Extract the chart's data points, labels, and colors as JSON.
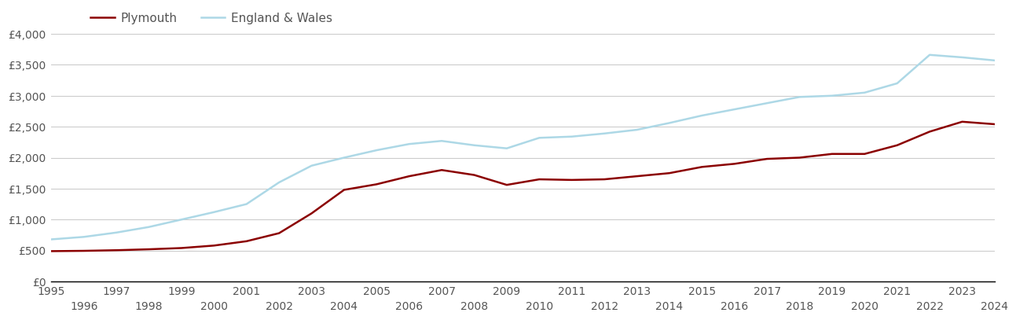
{
  "plymouth_years": [
    1995,
    1996,
    1997,
    1998,
    1999,
    2000,
    2001,
    2002,
    2003,
    2004,
    2005,
    2006,
    2007,
    2008,
    2009,
    2010,
    2011,
    2012,
    2013,
    2014,
    2015,
    2016,
    2017,
    2018,
    2019,
    2020,
    2021,
    2022,
    2023,
    2024
  ],
  "plymouth_values": [
    490,
    495,
    505,
    520,
    540,
    580,
    650,
    780,
    1100,
    1480,
    1570,
    1700,
    1800,
    1720,
    1560,
    1650,
    1640,
    1650,
    1700,
    1750,
    1850,
    1900,
    1980,
    2000,
    2060,
    2060,
    2200,
    2420,
    2580,
    2540
  ],
  "ew_years": [
    1995,
    1996,
    1997,
    1998,
    1999,
    2000,
    2001,
    2002,
    2003,
    2004,
    2005,
    2006,
    2007,
    2008,
    2009,
    2010,
    2011,
    2012,
    2013,
    2014,
    2015,
    2016,
    2017,
    2018,
    2019,
    2020,
    2021,
    2022,
    2023,
    2024
  ],
  "ew_values": [
    680,
    720,
    790,
    880,
    1000,
    1120,
    1250,
    1600,
    1870,
    2000,
    2120,
    2220,
    2270,
    2200,
    2150,
    2320,
    2340,
    2390,
    2450,
    2560,
    2680,
    2780,
    2880,
    2980,
    3000,
    3050,
    3200,
    3660,
    3620,
    3570
  ],
  "plymouth_color": "#8B0000",
  "ew_color": "#ADD8E6",
  "background_color": "#ffffff",
  "grid_color": "#cccccc",
  "ylim": [
    0,
    4000
  ],
  "yticks": [
    0,
    500,
    1000,
    1500,
    2000,
    2500,
    3000,
    3500,
    4000
  ],
  "ytick_labels": [
    "£0",
    "£500",
    "£1,000",
    "£1,500",
    "£2,000",
    "£2,500",
    "£3,000",
    "£3,500",
    "£4,000"
  ],
  "xticks_odd": [
    1995,
    1997,
    1999,
    2001,
    2003,
    2005,
    2007,
    2009,
    2011,
    2013,
    2015,
    2017,
    2019,
    2021,
    2023
  ],
  "xticks_even": [
    1996,
    1998,
    2000,
    2002,
    2004,
    2006,
    2008,
    2010,
    2012,
    2014,
    2016,
    2018,
    2020,
    2022,
    2024
  ],
  "legend_labels": [
    "Plymouth",
    "England & Wales"
  ],
  "line_width": 1.8,
  "tick_fontsize": 10,
  "tick_color": "#555555"
}
